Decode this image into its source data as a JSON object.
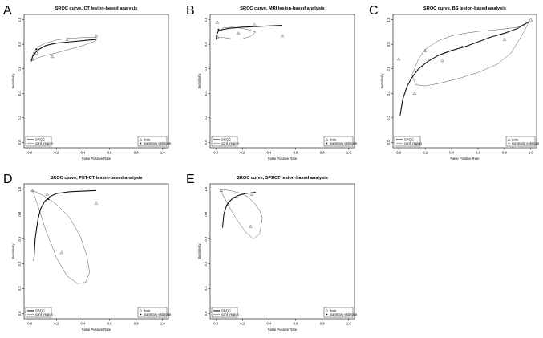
{
  "chart_data": [
    {
      "panel": "A",
      "type": "line",
      "title": "SROC curve, CT lesion-based analysis",
      "xlabel": "False Positive Rate",
      "ylabel": "Sensitivity",
      "xlim": [
        0,
        1
      ],
      "ylim": [
        0,
        1
      ],
      "xticks": [
        "0.0",
        "0.2",
        "0.4",
        "0.6",
        "0.8",
        "1.0"
      ],
      "yticks": [
        "0.0",
        "0.2",
        "0.4",
        "0.6",
        "0.8",
        "1.0"
      ],
      "legend_left": [
        "SROC",
        "conf. region"
      ],
      "legend_right": [
        "data",
        "summary estimate"
      ],
      "data_points": [
        [
          0.02,
          0.68
        ],
        [
          0.05,
          0.73
        ],
        [
          0.17,
          0.7
        ],
        [
          0.28,
          0.84
        ],
        [
          0.5,
          0.87
        ]
      ],
      "summary_estimate": [
        0.05,
        0.76
      ],
      "sroc_x": [
        0.01,
        0.02,
        0.04,
        0.07,
        0.12,
        0.2,
        0.3,
        0.4,
        0.5
      ],
      "sroc_y": [
        0.66,
        0.7,
        0.73,
        0.76,
        0.79,
        0.81,
        0.82,
        0.83,
        0.84
      ],
      "region_upper_x": [
        0.01,
        0.03,
        0.06,
        0.12,
        0.2,
        0.3,
        0.4,
        0.5
      ],
      "region_upper_y": [
        0.67,
        0.74,
        0.78,
        0.81,
        0.835,
        0.85,
        0.855,
        0.855
      ],
      "region_lower_x": [
        0.5,
        0.4,
        0.3,
        0.2,
        0.12,
        0.06,
        0.03,
        0.01
      ],
      "region_lower_y": [
        0.83,
        0.79,
        0.76,
        0.73,
        0.71,
        0.69,
        0.67,
        0.67
      ]
    },
    {
      "panel": "B",
      "type": "line",
      "title": "SROC curve, MRI lesion-based analysis",
      "xlabel": "False Positive Rate",
      "ylabel": "Sensitivity",
      "xlim": [
        0,
        1
      ],
      "ylim": [
        0,
        1
      ],
      "xticks": [
        "0.0",
        "0.2",
        "0.4",
        "0.6",
        "0.8",
        "1.0"
      ],
      "yticks": [
        "0.0",
        "0.2",
        "0.4",
        "0.6",
        "0.8",
        "1.0"
      ],
      "legend_left": [
        "SROC",
        "conf. region"
      ],
      "legend_right": [
        "data",
        "summary estimate"
      ],
      "data_points": [
        [
          0.01,
          0.98
        ],
        [
          0.01,
          0.86
        ],
        [
          0.17,
          0.89
        ],
        [
          0.29,
          0.96
        ],
        [
          0.5,
          0.87
        ]
      ],
      "summary_estimate": [
        0.02,
        0.92
      ],
      "sroc_x": [
        0.0,
        0.01,
        0.02,
        0.05,
        0.1,
        0.2,
        0.3,
        0.4,
        0.5
      ],
      "sroc_y": [
        0.84,
        0.89,
        0.91,
        0.92,
        0.93,
        0.94,
        0.945,
        0.95,
        0.955
      ],
      "region_upper_x": [
        0.0,
        0.02,
        0.06,
        0.12,
        0.2,
        0.26,
        0.3
      ],
      "region_upper_y": [
        0.87,
        0.91,
        0.935,
        0.94,
        0.93,
        0.915,
        0.9
      ],
      "region_lower_x": [
        0.3,
        0.26,
        0.2,
        0.12,
        0.06,
        0.02,
        0.0
      ],
      "region_lower_y": [
        0.9,
        0.865,
        0.845,
        0.845,
        0.855,
        0.86,
        0.87
      ]
    },
    {
      "panel": "C",
      "type": "line",
      "title": "SROC curve, BS lesion-based analysis",
      "xlabel": "False Positive Rate",
      "ylabel": "Sensitivity",
      "xlim": [
        0,
        1
      ],
      "ylim": [
        0,
        1
      ],
      "xticks": [
        "0.0",
        "0.2",
        "0.4",
        "0.6",
        "0.8",
        "1.0"
      ],
      "yticks": [
        "0.0",
        "0.2",
        "0.4",
        "0.6",
        "0.8",
        "1.0"
      ],
      "legend_left": [
        "SROC",
        "conf. region"
      ],
      "legend_right": [
        "data",
        "summary estimate"
      ],
      "data_points": [
        [
          0.0,
          0.68
        ],
        [
          0.12,
          0.4
        ],
        [
          0.2,
          0.75
        ],
        [
          0.33,
          0.67
        ],
        [
          0.8,
          0.84
        ],
        [
          1.0,
          1.0
        ]
      ],
      "summary_estimate": [
        0.48,
        0.78
      ],
      "sroc_x": [
        0.01,
        0.03,
        0.06,
        0.1,
        0.15,
        0.22,
        0.3,
        0.4,
        0.5,
        0.6,
        0.7,
        0.8,
        0.9,
        0.98
      ],
      "sroc_y": [
        0.22,
        0.35,
        0.45,
        0.53,
        0.6,
        0.66,
        0.71,
        0.75,
        0.78,
        0.82,
        0.86,
        0.89,
        0.93,
        0.98
      ],
      "region_upper_x": [
        0.1,
        0.15,
        0.2,
        0.3,
        0.4,
        0.5,
        0.6,
        0.7,
        0.8,
        0.9,
        0.98
      ],
      "region_upper_y": [
        0.55,
        0.68,
        0.76,
        0.83,
        0.87,
        0.89,
        0.905,
        0.915,
        0.925,
        0.94,
        0.98
      ],
      "region_lower_x": [
        0.98,
        0.92,
        0.85,
        0.75,
        0.6,
        0.45,
        0.3,
        0.2,
        0.13,
        0.1
      ],
      "region_lower_y": [
        0.97,
        0.85,
        0.73,
        0.64,
        0.57,
        0.52,
        0.48,
        0.46,
        0.47,
        0.55
      ]
    },
    {
      "panel": "D",
      "type": "line",
      "title": "SROC curve, PET-CT lesion-based analysis",
      "xlabel": "False Positive Rate",
      "ylabel": "Sensitivity",
      "xlim": [
        0,
        1
      ],
      "ylim": [
        0,
        1
      ],
      "xticks": [
        "0.0",
        "0.2",
        "0.4",
        "0.6",
        "0.8",
        "1.0"
      ],
      "yticks": [
        "0.0",
        "0.2",
        "0.4",
        "0.6",
        "0.8",
        "1.0"
      ],
      "legend_left": [
        "SROC",
        "conf. region"
      ],
      "legend_right": [
        "data",
        "summary estimate"
      ],
      "data_points": [
        [
          0.02,
          0.99
        ],
        [
          0.13,
          0.96
        ],
        [
          0.24,
          0.49
        ],
        [
          0.5,
          0.89
        ]
      ],
      "summary_estimate": [
        0.14,
        0.92
      ],
      "sroc_x": [
        0.03,
        0.04,
        0.06,
        0.08,
        0.11,
        0.15,
        0.2,
        0.3,
        0.4,
        0.5
      ],
      "sroc_y": [
        0.42,
        0.6,
        0.75,
        0.84,
        0.9,
        0.94,
        0.965,
        0.98,
        0.985,
        0.99
      ],
      "region_upper_x": [
        0.02,
        0.1,
        0.2,
        0.3,
        0.38,
        0.43,
        0.45
      ],
      "region_upper_y": [
        0.99,
        0.95,
        0.88,
        0.77,
        0.62,
        0.46,
        0.33
      ],
      "region_lower_x": [
        0.45,
        0.42,
        0.36,
        0.28,
        0.2,
        0.12,
        0.06,
        0.02
      ],
      "region_lower_y": [
        0.33,
        0.25,
        0.24,
        0.3,
        0.45,
        0.67,
        0.87,
        0.99
      ]
    },
    {
      "panel": "E",
      "type": "line",
      "title": "SROC curve, SPECT lesion-based analysis",
      "xlabel": "False Positive Rate",
      "ylabel": "Sensitivity",
      "xlim": [
        0,
        1
      ],
      "ylim": [
        0,
        1
      ],
      "xticks": [
        "0.0",
        "0.2",
        "0.4",
        "0.6",
        "0.8",
        "1.0"
      ],
      "yticks": [
        "0.0",
        "0.2",
        "0.4",
        "0.6",
        "0.8",
        "1.0"
      ],
      "legend_left": [
        "SROC",
        "conf. region"
      ],
      "legend_right": [
        "data",
        "summary estimate"
      ],
      "data_points": [
        [
          0.04,
          0.99
        ],
        [
          0.09,
          0.88
        ],
        [
          0.26,
          0.7
        ],
        [
          0.27,
          0.96
        ]
      ],
      "summary_estimate": [
        0.13,
        0.93
      ],
      "sroc_x": [
        0.05,
        0.06,
        0.08,
        0.1,
        0.13,
        0.17,
        0.22,
        0.3
      ],
      "sroc_y": [
        0.69,
        0.8,
        0.87,
        0.9,
        0.93,
        0.95,
        0.965,
        0.975
      ],
      "region_upper_x": [
        0.03,
        0.1,
        0.18,
        0.24,
        0.29,
        0.33,
        0.35
      ],
      "region_upper_y": [
        1.0,
        0.99,
        0.97,
        0.94,
        0.89,
        0.83,
        0.77
      ],
      "region_lower_x": [
        0.35,
        0.33,
        0.28,
        0.22,
        0.15,
        0.09,
        0.05,
        0.03
      ],
      "region_lower_y": [
        0.77,
        0.64,
        0.6,
        0.66,
        0.77,
        0.88,
        0.96,
        1.0
      ]
    }
  ]
}
